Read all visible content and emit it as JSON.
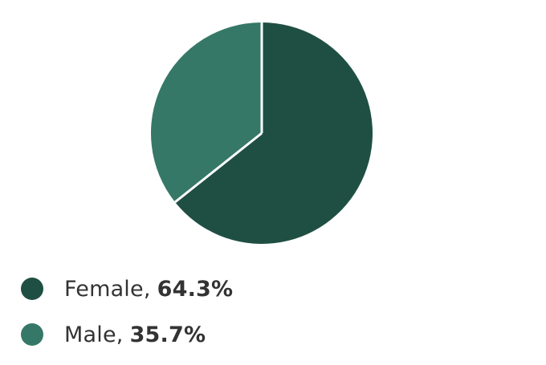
{
  "chart_data": {
    "type": "pie",
    "slices": [
      {
        "label": "Female",
        "value": 64.3,
        "display": "64.3%",
        "color": "#1f4f43"
      },
      {
        "label": "Male",
        "value": 35.7,
        "display": "35.7%",
        "color": "#357868"
      }
    ],
    "start_angle": "top",
    "direction": "clockwise",
    "legend_position": "bottom-left",
    "slice_separator_color": "#ffffff"
  },
  "legend": {
    "separator": ",",
    "items": [
      {
        "label": "Female",
        "value": "64.3%",
        "color": "#1f4f43"
      },
      {
        "label": "Male",
        "value": "35.7%",
        "color": "#357868"
      }
    ]
  }
}
